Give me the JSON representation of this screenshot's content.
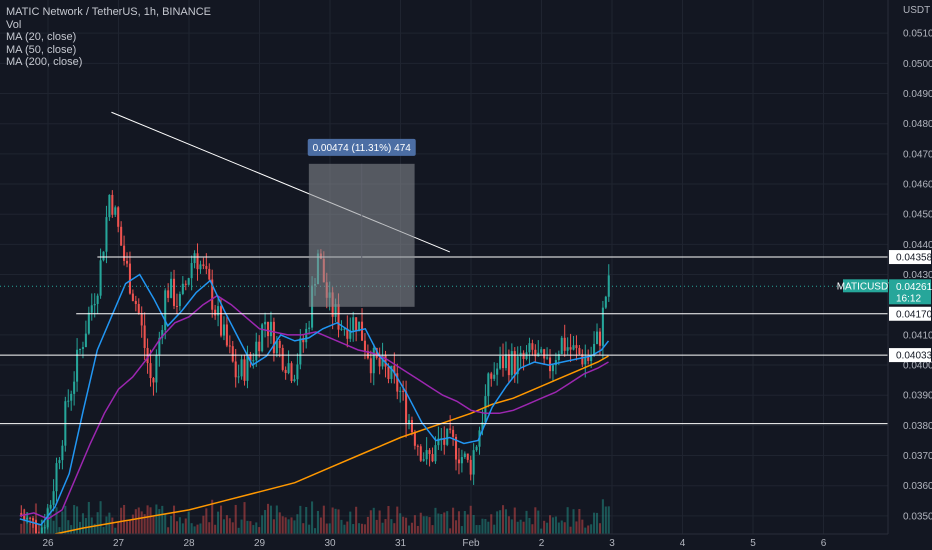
{
  "legend": {
    "title": "MATIC Network / TetherUS, 1h, BINANCE",
    "vol": "Vol",
    "ma20": "MA (20, close)",
    "ma50": "MA (50, close)",
    "ma200": "MA (200, close)"
  },
  "colors": {
    "background": "#131722",
    "grid": "#1f2430",
    "up": "#26a69a",
    "down": "#ef5350",
    "ma20": "#2196f3",
    "ma50": "#9c27b0",
    "ma200": "#ff9800",
    "lines": "#ffffff",
    "current": "#26a69a",
    "measure_box": "#8c8f96",
    "measure_label": "#4c6ea4"
  },
  "chart_data": {
    "type": "candlestick",
    "y_axis_unit": "USDT",
    "ylim": [
      0.0344,
      0.0521
    ],
    "y_ticks": [
      "0.05100",
      "0.05000",
      "0.04900",
      "0.04800",
      "0.04700",
      "0.04600",
      "0.04500",
      "0.04400",
      "0.04300",
      "0.04100",
      "0.04000",
      "0.03900",
      "0.03800",
      "0.03700",
      "0.03600",
      "0.03500"
    ],
    "x_tick_labels": [
      "26",
      "27",
      "28",
      "29",
      "30",
      "31",
      "Feb",
      "2",
      "3",
      "4",
      "5",
      "6"
    ],
    "price_labels": [
      {
        "text": "0.04358",
        "value": 0.04358
      },
      {
        "text": "0.04170",
        "value": 0.0417
      },
      {
        "text": "0.04033",
        "value": 0.04033
      }
    ],
    "current_price": {
      "symbol": "MATICUSDT",
      "price": "0.04261",
      "countdown": "16:12",
      "value": 0.04261
    },
    "horizontal_levels": [
      0.04358,
      0.0417,
      0.04033,
      0.03806
    ],
    "trendline": {
      "from": {
        "day": 26.9,
        "price": 0.04838
      },
      "to": {
        "day": 31.7,
        "price": 0.04375
      }
    },
    "measure": {
      "label": "0.00474 (11.31%) 474",
      "from_day": 29.7,
      "to_day": 31.2,
      "price_low": 0.04193,
      "price_high": 0.04667
    },
    "series_price_path": [
      [
        25.6,
        0.0351
      ],
      [
        25.9,
        0.0345
      ],
      [
        26.05,
        0.0354
      ],
      [
        26.3,
        0.0388
      ],
      [
        26.55,
        0.0412
      ],
      [
        26.75,
        0.043
      ],
      [
        26.9,
        0.0458
      ],
      [
        27.1,
        0.0435
      ],
      [
        27.3,
        0.0418
      ],
      [
        27.5,
        0.0392
      ],
      [
        27.7,
        0.0426
      ],
      [
        27.9,
        0.042
      ],
      [
        28.1,
        0.0438
      ],
      [
        28.3,
        0.0426
      ],
      [
        28.5,
        0.041
      ],
      [
        28.7,
        0.0396
      ],
      [
        28.9,
        0.0402
      ],
      [
        29.1,
        0.0415
      ],
      [
        29.3,
        0.0405
      ],
      [
        29.5,
        0.0398
      ],
      [
        29.7,
        0.0412
      ],
      [
        29.85,
        0.0438
      ],
      [
        30.0,
        0.042
      ],
      [
        30.2,
        0.0413
      ],
      [
        30.4,
        0.0415
      ],
      [
        30.6,
        0.0402
      ],
      [
        30.8,
        0.0398
      ],
      [
        31.0,
        0.0392
      ],
      [
        31.2,
        0.0378
      ],
      [
        31.4,
        0.0368
      ],
      [
        31.6,
        0.0375
      ],
      [
        31.8,
        0.0373
      ],
      [
        32.0,
        0.0366
      ],
      [
        32.1,
        0.0375
      ],
      [
        32.3,
        0.0396
      ],
      [
        32.5,
        0.0402
      ],
      [
        32.7,
        0.04
      ],
      [
        32.9,
        0.0404
      ],
      [
        33.1,
        0.0398
      ],
      [
        33.3,
        0.0408
      ],
      [
        33.5,
        0.0404
      ],
      [
        33.7,
        0.0402
      ],
      [
        33.85,
        0.041
      ],
      [
        33.95,
        0.0426
      ]
    ],
    "ma20_path": [
      [
        25.6,
        0.0349
      ],
      [
        25.9,
        0.0347
      ],
      [
        26.1,
        0.0353
      ],
      [
        26.3,
        0.0364
      ],
      [
        26.5,
        0.0385
      ],
      [
        26.7,
        0.0405
      ],
      [
        26.9,
        0.0416
      ],
      [
        27.1,
        0.0427
      ],
      [
        27.3,
        0.043
      ],
      [
        27.5,
        0.0422
      ],
      [
        27.7,
        0.0413
      ],
      [
        27.9,
        0.0418
      ],
      [
        28.1,
        0.0424
      ],
      [
        28.3,
        0.0428
      ],
      [
        28.5,
        0.0418
      ],
      [
        28.7,
        0.0409
      ],
      [
        28.9,
        0.04
      ],
      [
        29.1,
        0.0403
      ],
      [
        29.3,
        0.041
      ],
      [
        29.5,
        0.0408
      ],
      [
        29.7,
        0.0409
      ],
      [
        29.9,
        0.0412
      ],
      [
        30.1,
        0.0414
      ],
      [
        30.3,
        0.0411
      ],
      [
        30.5,
        0.0412
      ],
      [
        30.7,
        0.0403
      ],
      [
        30.9,
        0.0398
      ],
      [
        31.1,
        0.039
      ],
      [
        31.3,
        0.0381
      ],
      [
        31.5,
        0.0375
      ],
      [
        31.7,
        0.0376
      ],
      [
        31.9,
        0.0374
      ],
      [
        32.1,
        0.0375
      ],
      [
        32.3,
        0.0386
      ],
      [
        32.5,
        0.0393
      ],
      [
        32.7,
        0.0399
      ],
      [
        32.9,
        0.0401
      ],
      [
        33.1,
        0.04
      ],
      [
        33.3,
        0.0401
      ],
      [
        33.5,
        0.0402
      ],
      [
        33.7,
        0.0403
      ],
      [
        33.85,
        0.0405
      ],
      [
        33.95,
        0.0408
      ]
    ],
    "ma50_path": [
      [
        25.6,
        0.035
      ],
      [
        25.8,
        0.0351
      ],
      [
        26.0,
        0.0349
      ],
      [
        26.2,
        0.0352
      ],
      [
        26.4,
        0.0363
      ],
      [
        26.6,
        0.0374
      ],
      [
        26.8,
        0.0384
      ],
      [
        27.0,
        0.0392
      ],
      [
        27.2,
        0.0396
      ],
      [
        27.4,
        0.0402
      ],
      [
        27.6,
        0.0409
      ],
      [
        27.8,
        0.0414
      ],
      [
        28.0,
        0.0416
      ],
      [
        28.2,
        0.042
      ],
      [
        28.4,
        0.0423
      ],
      [
        28.6,
        0.042
      ],
      [
        28.8,
        0.0416
      ],
      [
        29.0,
        0.0412
      ],
      [
        29.2,
        0.0411
      ],
      [
        29.4,
        0.041
      ],
      [
        29.6,
        0.041
      ],
      [
        29.8,
        0.0411
      ],
      [
        30.0,
        0.0409
      ],
      [
        30.2,
        0.0407
      ],
      [
        30.4,
        0.0405
      ],
      [
        30.6,
        0.0404
      ],
      [
        30.8,
        0.0402
      ],
      [
        31.0,
        0.0399
      ],
      [
        31.2,
        0.0396
      ],
      [
        31.4,
        0.0393
      ],
      [
        31.6,
        0.039
      ],
      [
        31.8,
        0.0388
      ],
      [
        32.0,
        0.0385
      ],
      [
        32.2,
        0.0384
      ],
      [
        32.4,
        0.0384
      ],
      [
        32.6,
        0.0385
      ],
      [
        32.8,
        0.0387
      ],
      [
        33.0,
        0.0389
      ],
      [
        33.2,
        0.0391
      ],
      [
        33.4,
        0.0394
      ],
      [
        33.6,
        0.0397
      ],
      [
        33.8,
        0.0399
      ],
      [
        33.95,
        0.0401
      ]
    ],
    "ma200_path": [
      [
        26.1,
        0.0344
      ],
      [
        26.5,
        0.0346
      ],
      [
        27.0,
        0.0348
      ],
      [
        27.5,
        0.035
      ],
      [
        28.0,
        0.0352
      ],
      [
        28.5,
        0.0355
      ],
      [
        29.0,
        0.0358
      ],
      [
        29.5,
        0.0361
      ],
      [
        30.0,
        0.0366
      ],
      [
        30.5,
        0.0371
      ],
      [
        31.0,
        0.0376
      ],
      [
        31.5,
        0.038
      ],
      [
        32.0,
        0.0384
      ],
      [
        32.3,
        0.0387
      ],
      [
        32.6,
        0.0389
      ],
      [
        32.9,
        0.0392
      ],
      [
        33.2,
        0.0395
      ],
      [
        33.5,
        0.0398
      ],
      [
        33.8,
        0.0401
      ],
      [
        33.95,
        0.0403
      ]
    ]
  }
}
